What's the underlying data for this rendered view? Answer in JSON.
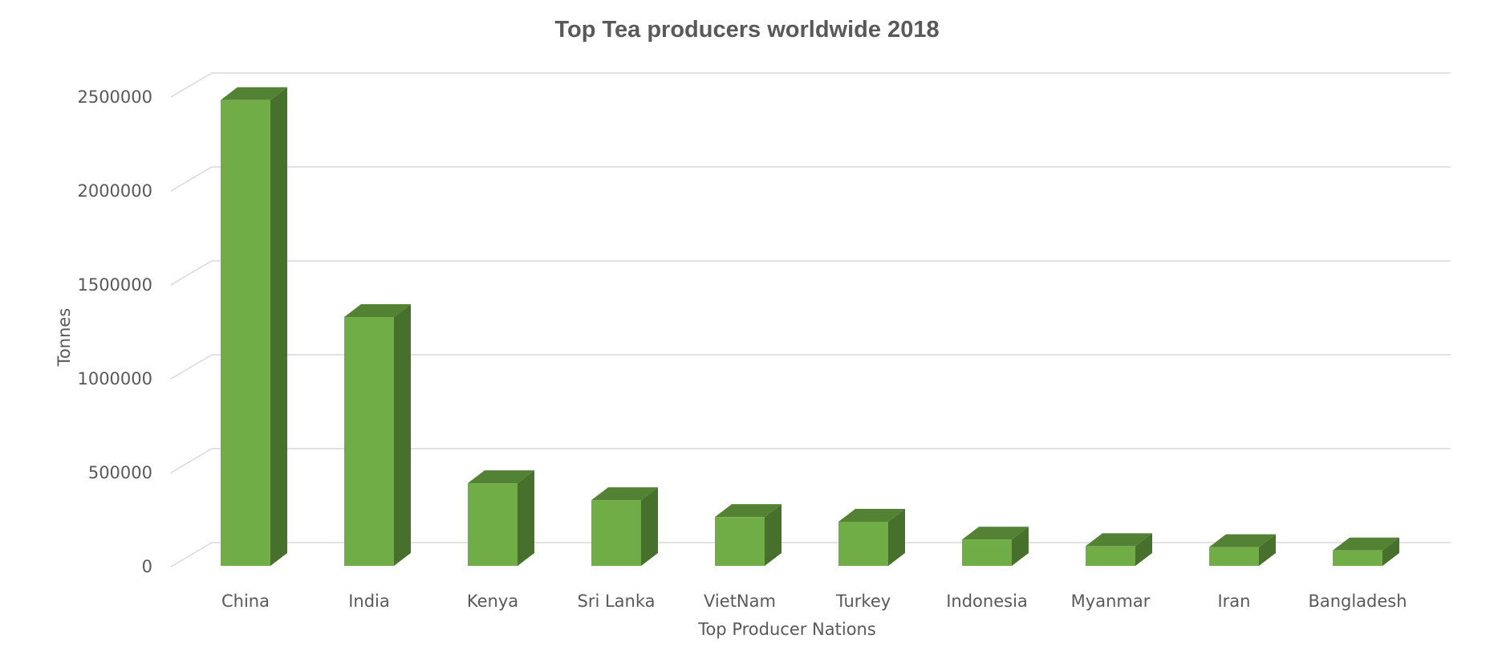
{
  "chart_data": {
    "type": "bar",
    "title": "Top Tea producers worldwide 2018",
    "xlabel": "Top Producer Nations",
    "ylabel": "Tonnes",
    "categories": [
      "China",
      "India",
      "Kenya",
      "Sri Lanka",
      "VietNam",
      "Turkey",
      "Indonesia",
      "Myanmar",
      "Iran",
      "Bangladesh"
    ],
    "values": [
      2480000,
      1325000,
      440000,
      350000,
      260000,
      235000,
      140000,
      105000,
      100000,
      82000
    ],
    "ylim": [
      0,
      2500000
    ],
    "yticks": [
      "0",
      "500000",
      "1000000",
      "1500000",
      "2000000",
      "2500000"
    ],
    "grid": true,
    "style": "3d-column",
    "colors": {
      "front": "#70AD47",
      "side": "#47702C",
      "top": "#548235",
      "grid": "#D9D9D9",
      "text": "#595959"
    }
  }
}
